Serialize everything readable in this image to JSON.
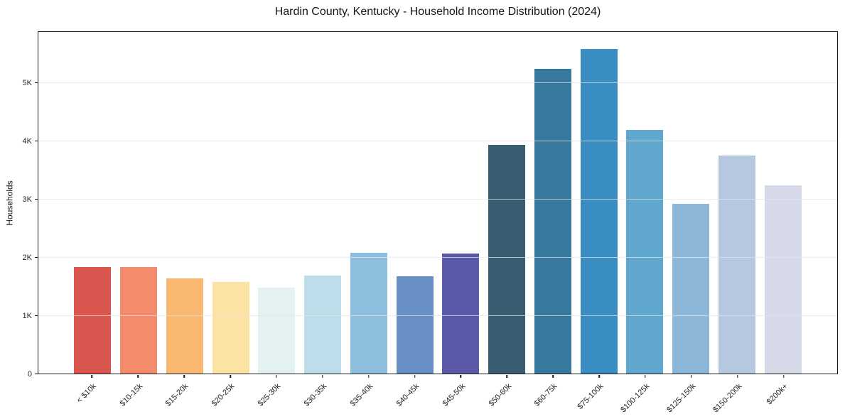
{
  "chart_data": {
    "type": "bar",
    "title": "Hardin County, Kentucky - Household Income Distribution (2024)",
    "xlabel": "",
    "ylabel": "Households",
    "categories": [
      "< $10k",
      "$10-15k",
      "$15-20k",
      "$20-25k",
      "$25-30k",
      "$30-35k",
      "$35-40k",
      "$40-45k",
      "$45-50k",
      "$50-60k",
      "$60-75k",
      "$75-100k",
      "$100-125k",
      "$125-150k",
      "$150-200k",
      "$200k+"
    ],
    "values": [
      1830,
      1830,
      1640,
      1570,
      1480,
      1690,
      2080,
      1670,
      2060,
      3930,
      5230,
      5580,
      4180,
      2920,
      3750,
      3240
    ],
    "bar_colors": [
      "#d9564f",
      "#f58b6d",
      "#f9b870",
      "#fce3a4",
      "#e4f1f3",
      "#bcdde9",
      "#8ebedd",
      "#6990c4",
      "#5b59a9",
      "#395e72",
      "#38799f",
      "#398dc2",
      "#5fa7ce",
      "#8db7d9",
      "#b6c7e0",
      "#d6d9e7"
    ],
    "ylim": [
      0,
      5870
    ],
    "yticks": [
      {
        "value": 0,
        "label": "0"
      },
      {
        "value": 1000,
        "label": "1K"
      },
      {
        "value": 2000,
        "label": "2K"
      },
      {
        "value": 3000,
        "label": "3K"
      },
      {
        "value": 4000,
        "label": "4K"
      },
      {
        "value": 5000,
        "label": "5K"
      }
    ],
    "grid": "horizontal",
    "legend": "none",
    "style_colors": {
      "axis": "#1a1a1a",
      "grid": "#e5e5e5",
      "tick_text": "#262626",
      "title_text": "#151515",
      "background": "#ffffff"
    }
  }
}
